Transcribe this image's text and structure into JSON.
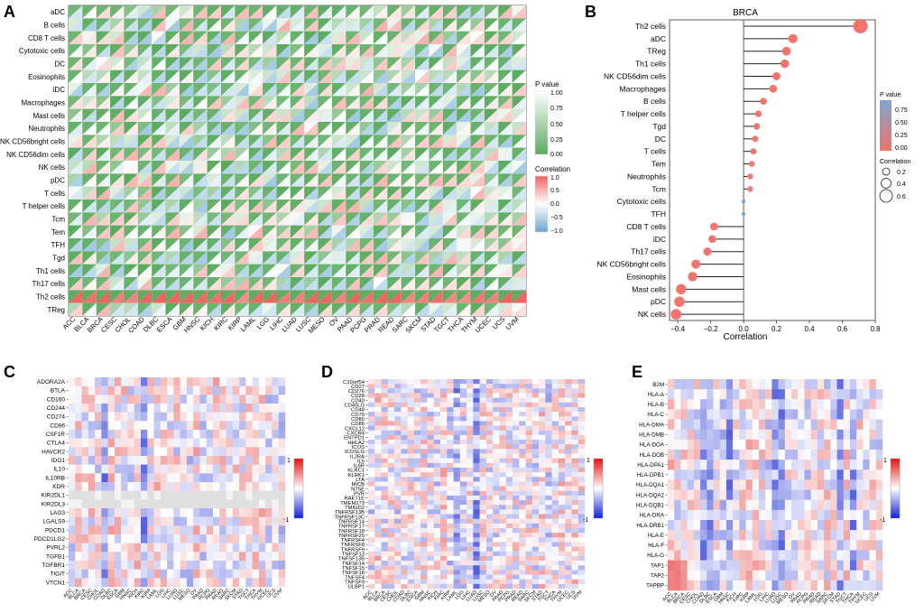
{
  "panel_labels": [
    "A",
    "B",
    "C",
    "D",
    "E"
  ],
  "chart_data": [
    {
      "panel": "A",
      "type": "heatmap",
      "title": "",
      "rows": [
        "aDC",
        "B cells",
        "CD8 T cells",
        "Cytotoxic cells",
        "DC",
        "Eosinophils",
        "iDC",
        "Macrophages",
        "Mast cells",
        "Neutrophils",
        "NK CD56bright cells",
        "NK CD56dim cells",
        "NK cells",
        "pDC",
        "T cells",
        "T helper cells",
        "Tcm",
        "Tem",
        "TFH",
        "Tgd",
        "Th1 cells",
        "Th17 cells",
        "Th2 cells",
        "TReg"
      ],
      "columns": [
        "ACC",
        "BLCA",
        "BRCA",
        "CESC",
        "CHOL",
        "COAD",
        "DLBC",
        "ESCA",
        "GBM",
        "HNSC",
        "KICH",
        "KIRC",
        "KIRP",
        "LAML",
        "LGG",
        "LIHC",
        "LUAD",
        "LUSC",
        "MESO",
        "OV",
        "PAAD",
        "PCPG",
        "PRAD",
        "READ",
        "SARC",
        "SKCM",
        "STAD",
        "TGCT",
        "THCA",
        "THYM",
        "UCEC",
        "UCS",
        "UVM"
      ],
      "legend_pvalue": {
        "title": "P value",
        "ticks": [
          "1.00",
          "0.75",
          "0.50",
          "0.25",
          "0.00"
        ]
      },
      "legend_correlation": {
        "title": "Correlation",
        "ticks": [
          "1.0",
          "0.5",
          "0.0",
          "−0.5",
          "−1.0"
        ]
      }
    },
    {
      "panel": "B",
      "type": "scatter",
      "title": "BRCA",
      "xlabel": "Correlation",
      "xlim": [
        -0.45,
        0.8
      ],
      "xticks": [
        "−0.4",
        "−0.2",
        "0.0",
        "0.2",
        "0.4",
        "0.6",
        "0.8"
      ],
      "xtick_values": [
        -0.4,
        -0.2,
        0,
        0.2,
        0.4,
        0.6,
        0.8
      ],
      "categories": [
        "Th2 cells",
        "aDC",
        "TReg",
        "Th1 cells",
        "NK CD56dim cells",
        "Macrophages",
        "B cells",
        "T helper cells",
        "Tgd",
        "DC",
        "T cells",
        "Tem",
        "Neutrophils",
        "Tcm",
        "Cytotoxic cells",
        "TFH",
        "CD8 T cells",
        "iDC",
        "Th17 cells",
        "NK CD56bright cells",
        "Eosinophils",
        "Mast cells",
        "pDC",
        "NK cells"
      ],
      "values": [
        0.71,
        0.3,
        0.26,
        0.25,
        0.2,
        0.18,
        0.12,
        0.09,
        0.08,
        0.07,
        0.06,
        0.05,
        0.04,
        0.04,
        0.0,
        0.0,
        -0.18,
        -0.19,
        -0.22,
        -0.29,
        -0.31,
        -0.38,
        -0.39,
        -0.41
      ],
      "pvalues": [
        0,
        0,
        0,
        0,
        0,
        0,
        0,
        0,
        0.01,
        0.02,
        0.03,
        0.05,
        0.08,
        0.1,
        0.92,
        0.95,
        0,
        0,
        0,
        0,
        0,
        0,
        0,
        0
      ],
      "legend_pvalue": {
        "title": "P value",
        "ticks": [
          "0.75",
          "0.50",
          "0.25",
          "0.00"
        ]
      },
      "legend_size": {
        "title": "Correlation",
        "ticks": [
          "0.2",
          "0.4",
          "0.6"
        ]
      }
    },
    {
      "panel": "C",
      "type": "heatmap",
      "rows": [
        "ADORA2A",
        "BTLA",
        "CD160",
        "CD244",
        "CD274",
        "CD96",
        "CSF1R",
        "CTLA4",
        "HAVCR2",
        "IDO1",
        "IL10",
        "IL10RB",
        "KDR",
        "KIR2DL1",
        "KIR2DL3",
        "LAG3",
        "LGALS9",
        "PDCD1",
        "PDCD1LG2",
        "PVRL2",
        "TGFB1",
        "TGFBR1",
        "TIGIT",
        "VTCN1"
      ],
      "columns": [
        "ACC",
        "BLCA",
        "BRCA",
        "CESC",
        "CHOL",
        "COAD",
        "DLBC",
        "ESCA",
        "GBM",
        "HNSC",
        "KICH",
        "KIRC",
        "KIRP",
        "LAML",
        "LGG",
        "LIHC",
        "LUAD",
        "LUSC",
        "MESO",
        "OV",
        "PAAD",
        "PCPG",
        "PRAD",
        "READ",
        "SARC",
        "SKCM",
        "STAD",
        "TGCT",
        "THCA",
        "THYM",
        "UCEC",
        "UCS",
        "UVM"
      ],
      "legend": {
        "max": "1",
        "min": "-1"
      }
    },
    {
      "panel": "D",
      "type": "heatmap",
      "rows": [
        "C10orf54",
        "CD27",
        "CD276",
        "CD28",
        "CD40",
        "CD40LG",
        "CD48",
        "CD70",
        "CD80",
        "CD86",
        "CXCL12",
        "CXCR4",
        "ENTPD1",
        "HHLA2",
        "ICOS",
        "ICOSLG",
        "IL2RA",
        "IL6",
        "IL6R",
        "KLRC1",
        "KLRK1",
        "LTA",
        "MICB",
        "NT5E",
        "PVR",
        "RAET1E",
        "TMEM173",
        "TMIGD2",
        "TNFRSF13B",
        "TNFRSF13C",
        "TNFRSF14",
        "TNFRSF17",
        "TNFRSF18",
        "TNFRSF25",
        "TNFRSF4",
        "TNFRSF8",
        "TNFRSF9",
        "TNFSF13",
        "TNFSF13B",
        "TNFSF14",
        "TNFSF15",
        "TNFSF18",
        "TNFSF4",
        "TNFSF9",
        "ULBP1"
      ],
      "columns": [
        "ACC",
        "BLCA",
        "BRCA",
        "CESC",
        "CHOL",
        "COAD",
        "DLBC",
        "ESCA",
        "GBM",
        "HNSC",
        "KICH",
        "KIRC",
        "KIRP",
        "LAML",
        "LGG",
        "LIHC",
        "LUAD",
        "LUSC",
        "MESO",
        "OV",
        "PAAD",
        "PCPG",
        "PRAD",
        "READ",
        "SARC",
        "SKCM",
        "STAD",
        "TGCT",
        "THCA",
        "THYM",
        "UCEC",
        "UCS",
        "UVM"
      ],
      "legend": {
        "max": "1",
        "min": "-1"
      }
    },
    {
      "panel": "E",
      "type": "heatmap",
      "rows": [
        "B2M",
        "HLA-A",
        "HLA-B",
        "HLA-C",
        "HLA-DMA",
        "HLA-DMB",
        "HLA-DOA",
        "HLA-DOB",
        "HLA-DPA1",
        "HLA-DPB1",
        "HLA-DQA1",
        "HLA-DQA2",
        "HLA-DQB1",
        "HLA-DRA",
        "HLA-DRB1",
        "HLA-E",
        "HLA-F",
        "HLA-G",
        "TAP1",
        "TAP2",
        "TAPBP"
      ],
      "columns": [
        "ACC",
        "BLCA",
        "BRCA",
        "CESC",
        "CHOL",
        "COAD",
        "DLBC",
        "ESCA",
        "GBM",
        "HNSC",
        "KICH",
        "KIRC",
        "KIRP",
        "LAML",
        "LGG",
        "LIHC",
        "LUAD",
        "LUSC",
        "MESO",
        "OV",
        "PAAD",
        "PCPG",
        "PRAD",
        "READ",
        "SARC",
        "SKCM",
        "STAD",
        "TGCT",
        "THCA",
        "THYM",
        "UCEC",
        "UCS",
        "UVM"
      ],
      "legend": {
        "max": "1",
        "min": "-1"
      }
    }
  ]
}
